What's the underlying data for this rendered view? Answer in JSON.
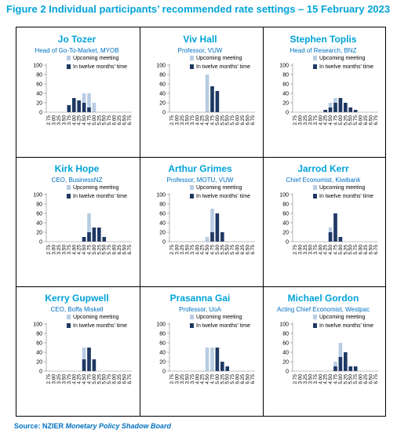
{
  "figure_title": "Figure 2 Individual participants’ recommended rate settings – 15 February 2023",
  "source": {
    "label": "Source: NZIER",
    "publication": "Monetary Policy Shadow Board"
  },
  "colors": {
    "title": "#00a3d9",
    "upcoming": "#b8cce4",
    "twelve_months": "#1f3864",
    "source": "#0070c0"
  },
  "chart_data": [
    {
      "type": "bar",
      "name": "Jo Tozer",
      "role": "Head of Go-To-Market, MYOB",
      "categories": [
        "2.75",
        "3.00",
        "3.25",
        "3.50",
        "3.75",
        "4.00",
        "4.25",
        "4.50",
        "4.75",
        "5.00",
        "5.25",
        "5.50",
        "5.75",
        "6.00",
        "6.25",
        "6.50",
        "6.75"
      ],
      "series": [
        {
          "name": "Upcoming meeting",
          "values": [
            0,
            0,
            0,
            0,
            0,
            0,
            0,
            40,
            40,
            20,
            0,
            0,
            0,
            0,
            0,
            0,
            0
          ]
        },
        {
          "name": "In twelve months' time",
          "values": [
            0,
            0,
            0,
            0,
            15,
            30,
            25,
            20,
            10,
            0,
            0,
            0,
            0,
            0,
            0,
            0,
            0
          ]
        }
      ],
      "ylim": [
        0,
        100
      ],
      "yticks": [
        0,
        20,
        40,
        60,
        80,
        100
      ],
      "legend": "top-right"
    },
    {
      "type": "bar",
      "name": "Viv Hall",
      "role": "Professor, VUW",
      "categories": [
        "2.75",
        "3.00",
        "3.25",
        "3.50",
        "3.75",
        "4.00",
        "4.25",
        "4.50",
        "4.75",
        "5.00",
        "5.25",
        "5.50",
        "5.75",
        "6.00",
        "6.25",
        "6.50",
        "6.75"
      ],
      "series": [
        {
          "name": "Upcoming meeting",
          "values": [
            0,
            0,
            0,
            0,
            0,
            0,
            0,
            80,
            20,
            0,
            0,
            0,
            0,
            0,
            0,
            0,
            0
          ]
        },
        {
          "name": "In twelve months' time",
          "values": [
            0,
            0,
            0,
            0,
            0,
            0,
            0,
            0,
            55,
            45,
            0,
            0,
            0,
            0,
            0,
            0,
            0
          ]
        }
      ],
      "ylim": [
        0,
        100
      ],
      "yticks": [
        0,
        20,
        40,
        60,
        80,
        100
      ],
      "legend": "top-right"
    },
    {
      "type": "bar",
      "name": "Stephen Toplis",
      "role": "Head of Research, BNZ",
      "categories": [
        "2.75",
        "3.00",
        "3.25",
        "3.50",
        "3.75",
        "4.00",
        "4.25",
        "4.50",
        "4.75",
        "5.00",
        "5.25",
        "5.50",
        "5.75",
        "6.00",
        "6.25",
        "6.50",
        "6.75"
      ],
      "series": [
        {
          "name": "Upcoming meeting",
          "values": [
            0,
            0,
            0,
            0,
            0,
            0,
            0,
            20,
            30,
            30,
            20,
            10,
            0,
            0,
            0,
            0,
            0
          ]
        },
        {
          "name": "In twelve months' time",
          "values": [
            0,
            0,
            0,
            0,
            0,
            0,
            5,
            10,
            20,
            30,
            20,
            10,
            5,
            0,
            0,
            0,
            0
          ]
        }
      ],
      "ylim": [
        0,
        100
      ],
      "yticks": [
        0,
        20,
        40,
        60,
        80,
        100
      ],
      "legend": "top-right"
    },
    {
      "type": "bar",
      "name": "Kirk Hope",
      "role": "CEO, BusinessNZ",
      "categories": [
        "2.75",
        "3.00",
        "3.25",
        "3.50",
        "3.75",
        "4.00",
        "4.25",
        "4.50",
        "4.75",
        "5.00",
        "5.25",
        "5.50",
        "5.75",
        "6.00",
        "6.25",
        "6.50",
        "6.75"
      ],
      "series": [
        {
          "name": "Upcoming meeting",
          "values": [
            0,
            0,
            0,
            0,
            0,
            0,
            0,
            10,
            60,
            30,
            0,
            0,
            0,
            0,
            0,
            0,
            0
          ]
        },
        {
          "name": "In twelve months' time",
          "values": [
            0,
            0,
            0,
            0,
            0,
            0,
            0,
            10,
            20,
            30,
            30,
            10,
            0,
            0,
            0,
            0,
            0
          ]
        }
      ],
      "ylim": [
        0,
        100
      ],
      "yticks": [
        0,
        20,
        40,
        60,
        80,
        100
      ],
      "legend": "top-right"
    },
    {
      "type": "bar",
      "name": "Arthur Grimes",
      "role": "Professor, MOTU, VUW",
      "categories": [
        "2.75",
        "3.00",
        "3.25",
        "3.50",
        "3.75",
        "4.00",
        "4.25",
        "4.50",
        "4.75",
        "5.00",
        "5.25",
        "5.50",
        "5.75",
        "6.00",
        "6.25",
        "6.50",
        "6.75"
      ],
      "series": [
        {
          "name": "Upcoming meeting",
          "values": [
            0,
            0,
            0,
            0,
            0,
            0,
            0,
            10,
            70,
            20,
            0,
            0,
            0,
            0,
            0,
            0,
            0
          ]
        },
        {
          "name": "In twelve months' time",
          "values": [
            0,
            0,
            0,
            0,
            0,
            0,
            0,
            0,
            20,
            60,
            20,
            0,
            0,
            0,
            0,
            0,
            0
          ]
        }
      ],
      "ylim": [
        0,
        100
      ],
      "yticks": [
        0,
        20,
        40,
        60,
        80,
        100
      ],
      "legend": "top-right"
    },
    {
      "type": "bar",
      "name": "Jarrod Kerr",
      "role": "Chief Economist, Kiwibank",
      "categories": [
        "2.75",
        "3.00",
        "3.25",
        "3.50",
        "3.75",
        "4.00",
        "4.25",
        "4.50",
        "4.75",
        "5.00",
        "5.25",
        "5.50",
        "5.75",
        "6.00",
        "6.25",
        "6.50",
        "6.75"
      ],
      "series": [
        {
          "name": "Upcoming meeting",
          "values": [
            0,
            0,
            0,
            0,
            0,
            0,
            0,
            30,
            60,
            10,
            0,
            0,
            0,
            0,
            0,
            0,
            0
          ]
        },
        {
          "name": "In twelve months' time",
          "values": [
            0,
            0,
            0,
            0,
            0,
            0,
            0,
            20,
            60,
            10,
            0,
            0,
            0,
            0,
            0,
            0,
            0
          ]
        }
      ],
      "ylim": [
        0,
        100
      ],
      "yticks": [
        0,
        20,
        40,
        60,
        80,
        100
      ],
      "legend": "top-right"
    },
    {
      "type": "bar",
      "name": "Kerry Gupwell",
      "role": "CEO, Boffa Miskell",
      "categories": [
        "2.75",
        "3.00",
        "3.25",
        "3.50",
        "3.75",
        "4.00",
        "4.25",
        "4.50",
        "4.75",
        "5.00",
        "5.25",
        "5.50",
        "5.75",
        "6.00",
        "6.25",
        "6.50",
        "6.75"
      ],
      "series": [
        {
          "name": "Upcoming meeting",
          "values": [
            0,
            0,
            0,
            0,
            0,
            0,
            0,
            50,
            50,
            0,
            0,
            0,
            0,
            0,
            0,
            0,
            0
          ]
        },
        {
          "name": "In twelve months' time",
          "values": [
            0,
            0,
            0,
            0,
            0,
            0,
            0,
            25,
            50,
            25,
            0,
            0,
            0,
            0,
            0,
            0,
            0
          ]
        }
      ],
      "ylim": [
        0,
        100
      ],
      "yticks": [
        0,
        20,
        40,
        60,
        80,
        100
      ],
      "legend": "top-right"
    },
    {
      "type": "bar",
      "name": "Prasanna Gai",
      "role": "Professor, UoA",
      "categories": [
        "2.75",
        "3.00",
        "3.25",
        "3.50",
        "3.75",
        "4.00",
        "4.25",
        "4.50",
        "4.75",
        "5.00",
        "5.25",
        "5.50",
        "5.75",
        "6.00",
        "6.25",
        "6.50",
        "6.75"
      ],
      "series": [
        {
          "name": "Upcoming meeting",
          "values": [
            0,
            0,
            0,
            0,
            0,
            0,
            0,
            50,
            50,
            0,
            0,
            0,
            0,
            0,
            0,
            0,
            0
          ]
        },
        {
          "name": "In twelve months' time",
          "values": [
            0,
            0,
            0,
            0,
            0,
            0,
            0,
            0,
            0,
            50,
            20,
            10,
            0,
            0,
            0,
            0,
            0
          ]
        }
      ],
      "ylim": [
        0,
        100
      ],
      "yticks": [
        0,
        20,
        40,
        60,
        80,
        100
      ],
      "legend": "top-right"
    },
    {
      "type": "bar",
      "name": "Michael Gordon",
      "role": "Acting Chief Economist, Westpac",
      "categories": [
        "2.75",
        "3.00",
        "3.25",
        "3.50",
        "3.75",
        "4.00",
        "4.25",
        "4.50",
        "4.75",
        "5.00",
        "5.25",
        "5.50",
        "5.75",
        "6.00",
        "6.25",
        "6.50",
        "6.75"
      ],
      "series": [
        {
          "name": "Upcoming meeting",
          "values": [
            0,
            0,
            0,
            0,
            0,
            0,
            0,
            0,
            20,
            60,
            20,
            0,
            0,
            0,
            0,
            0,
            0
          ]
        },
        {
          "name": "In twelve months' time",
          "values": [
            0,
            0,
            0,
            0,
            0,
            0,
            0,
            0,
            10,
            30,
            40,
            10,
            10,
            0,
            0,
            0,
            0
          ]
        }
      ],
      "ylim": [
        0,
        100
      ],
      "yticks": [
        0,
        20,
        40,
        60,
        80,
        100
      ],
      "legend": "top-right"
    }
  ]
}
